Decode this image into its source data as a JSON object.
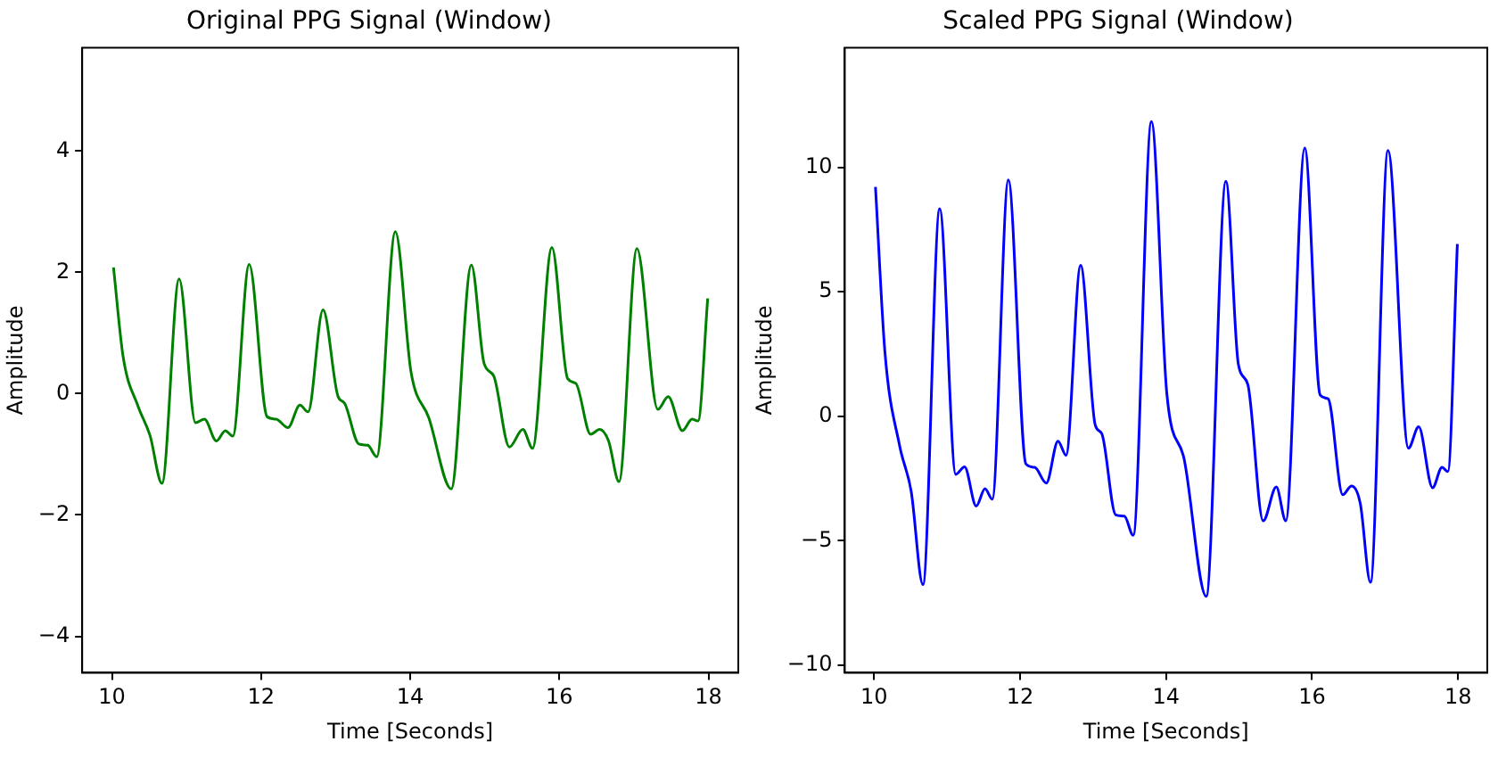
{
  "chart_data": [
    {
      "type": "line",
      "title": "Original PPG Signal (Window)",
      "xlabel": "Time [Seconds]",
      "ylabel": "Amplitude",
      "xlim": [
        9.6,
        18.4
      ],
      "ylim": [
        -4.6,
        5.7
      ],
      "xticks": [
        10,
        12,
        14,
        16,
        18
      ],
      "yticks": [
        {
          "value": -4,
          "label": "−4"
        },
        {
          "value": -2,
          "label": "−2"
        },
        0,
        2,
        4
      ],
      "grid": false,
      "legend": false,
      "marker": "none",
      "line_style": "solid",
      "series": [
        {
          "color": "#008000",
          "x": [
            10.02,
            10.15,
            10.35,
            10.51,
            10.67,
            10.9,
            11.12,
            11.24,
            11.4,
            11.52,
            11.62,
            11.84,
            12.08,
            12.2,
            12.36,
            12.52,
            12.63,
            12.83,
            13.03,
            13.12,
            13.31,
            13.43,
            13.55,
            13.8,
            14.01,
            14.25,
            14.55,
            14.82,
            14.99,
            15.12,
            15.33,
            15.51,
            15.64,
            15.9,
            16.11,
            16.22,
            16.42,
            16.54,
            16.66,
            16.8,
            17.04,
            17.32,
            17.46,
            17.65,
            17.78,
            17.86,
            17.99
          ],
          "values": [
            2.08,
            0.6,
            -0.21,
            -0.69,
            -1.48,
            1.89,
            -0.48,
            -0.42,
            -0.78,
            -0.61,
            -0.7,
            2.13,
            -0.38,
            -0.42,
            -0.56,
            -0.19,
            -0.3,
            1.38,
            -0.04,
            -0.16,
            -0.83,
            -0.85,
            -1.04,
            2.67,
            0.36,
            -0.4,
            -1.57,
            2.12,
            0.5,
            0.29,
            -0.88,
            -0.59,
            -0.9,
            2.41,
            0.25,
            0.17,
            -0.67,
            -0.59,
            -0.78,
            -1.45,
            2.39,
            -0.26,
            -0.05,
            -0.61,
            -0.42,
            -0.45,
            1.57
          ]
        }
      ]
    },
    {
      "type": "line",
      "title": "Scaled PPG Signal (Window)",
      "xlabel": "Time [Seconds]",
      "ylabel": "Amplitude",
      "xlim": [
        9.6,
        18.4
      ],
      "ylim": [
        -10.3,
        14.8
      ],
      "xticks": [
        10,
        12,
        14,
        16,
        18
      ],
      "yticks": [
        {
          "value": -10,
          "label": "−10"
        },
        {
          "value": -5,
          "label": "−5"
        },
        0,
        5,
        10
      ],
      "grid": false,
      "legend": false,
      "marker": "none",
      "line_style": "solid",
      "series": [
        {
          "color": "#0000ff",
          "x": [
            10.02,
            10.15,
            10.35,
            10.51,
            10.67,
            10.9,
            11.12,
            11.24,
            11.4,
            11.52,
            11.62,
            11.84,
            12.08,
            12.2,
            12.36,
            12.52,
            12.63,
            12.83,
            13.03,
            13.12,
            13.31,
            13.43,
            13.55,
            13.8,
            14.01,
            14.25,
            14.55,
            14.82,
            14.99,
            15.12,
            15.33,
            15.51,
            15.64,
            15.9,
            16.11,
            16.22,
            16.42,
            16.54,
            16.66,
            16.8,
            17.04,
            17.32,
            17.46,
            17.65,
            17.78,
            17.86,
            17.99
          ],
          "values": [
            9.21,
            2.56,
            -1.17,
            -3.03,
            -6.76,
            8.34,
            -2.33,
            -2.03,
            -3.61,
            -2.91,
            -3.33,
            9.49,
            -1.91,
            -2.05,
            -2.68,
            -1.0,
            -1.56,
            6.06,
            -0.35,
            -0.7,
            -3.96,
            -4.01,
            -4.78,
            11.84,
            0.93,
            -1.75,
            -7.23,
            9.44,
            2.1,
            1.28,
            -4.2,
            -2.84,
            -4.2,
            10.77,
            0.86,
            0.7,
            -3.15,
            -2.8,
            -3.5,
            -6.67,
            10.68,
            -1.28,
            -0.42,
            -2.87,
            -2.05,
            -2.22,
            6.92
          ]
        }
      ]
    }
  ]
}
